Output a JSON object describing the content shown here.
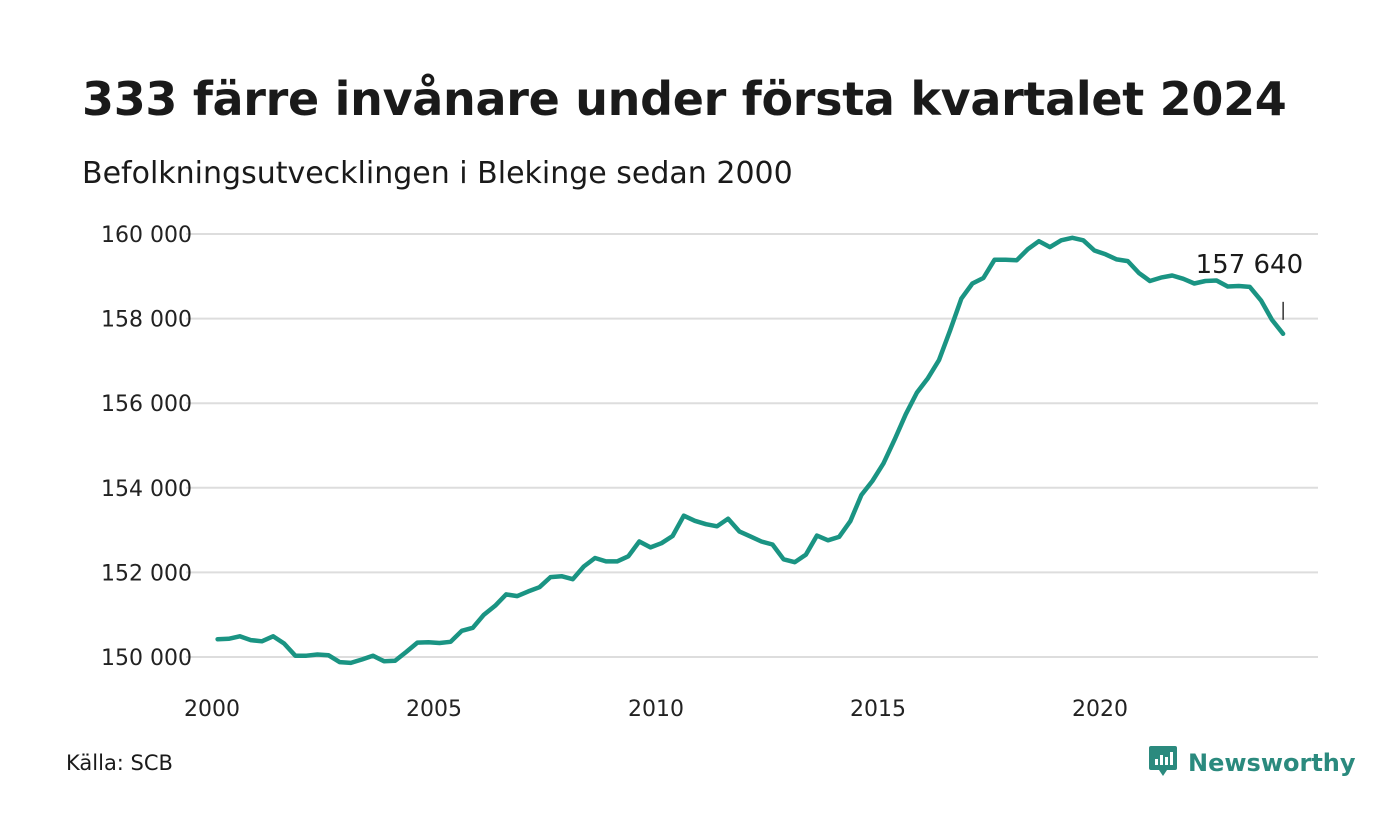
{
  "title": "333 färre invånare under första kvartalet 2024",
  "subtitle": "Befolkningsutvecklingen i Blekinge sedan 2000",
  "source": "Källa: SCB",
  "brand": {
    "name": "Newsworthy",
    "icon": "newsworthy-logo-icon",
    "color": "#2b8a7e"
  },
  "chart_data": {
    "type": "line",
    "line_color": "#1a9483",
    "grid": true,
    "ylim": [
      150000,
      160000
    ],
    "xlim": [
      2000,
      2025
    ],
    "y_ticks": [
      {
        "value": 150000,
        "label": "150 000"
      },
      {
        "value": 152000,
        "label": "152 000"
      },
      {
        "value": 154000,
        "label": "154 000"
      },
      {
        "value": 156000,
        "label": "156 000"
      },
      {
        "value": 158000,
        "label": "158 000"
      },
      {
        "value": 160000,
        "label": "160 000"
      }
    ],
    "x_ticks": [
      {
        "value": 2000,
        "label": "2000"
      },
      {
        "value": 2005,
        "label": "2005"
      },
      {
        "value": 2010,
        "label": "2010"
      },
      {
        "value": 2015,
        "label": "2015"
      },
      {
        "value": 2020,
        "label": "2020"
      }
    ],
    "end_label": "157 640",
    "series": [
      {
        "x": [
          "2000Q1",
          "2000Q2",
          "2000Q3",
          "2000Q4",
          "2001Q1",
          "2001Q2",
          "2001Q3",
          "2001Q4",
          "2002Q1",
          "2002Q2",
          "2002Q3",
          "2002Q4",
          "2003Q1",
          "2003Q2",
          "2003Q3",
          "2003Q4",
          "2004Q1",
          "2004Q2",
          "2004Q3",
          "2004Q4",
          "2005Q1",
          "2005Q2",
          "2005Q3",
          "2005Q4",
          "2006Q1",
          "2006Q2",
          "2006Q3",
          "2006Q4",
          "2007Q1",
          "2007Q2",
          "2007Q3",
          "2007Q4",
          "2008Q1",
          "2008Q2",
          "2008Q3",
          "2008Q4",
          "2009Q1",
          "2009Q2",
          "2009Q3",
          "2009Q4",
          "2010Q1",
          "2010Q2",
          "2010Q3",
          "2010Q4",
          "2011Q1",
          "2011Q2",
          "2011Q3",
          "2011Q4",
          "2012Q1",
          "2012Q2",
          "2012Q3",
          "2012Q4",
          "2013Q1",
          "2013Q2",
          "2013Q3",
          "2013Q4",
          "2014Q1",
          "2014Q2",
          "2014Q3",
          "2014Q4",
          "2015Q1",
          "2015Q2",
          "2015Q3",
          "2015Q4",
          "2016Q1",
          "2016Q2",
          "2016Q3",
          "2016Q4",
          "2017Q1",
          "2017Q2",
          "2017Q3",
          "2017Q4",
          "2018Q1",
          "2018Q2",
          "2018Q3",
          "2018Q4",
          "2019Q1",
          "2019Q2",
          "2019Q3",
          "2019Q4",
          "2020Q1",
          "2020Q2",
          "2020Q3",
          "2020Q4",
          "2021Q1",
          "2021Q2",
          "2021Q3",
          "2021Q4",
          "2022Q1",
          "2022Q2",
          "2022Q3",
          "2022Q4",
          "2023Q1",
          "2023Q2",
          "2023Q3",
          "2023Q4",
          "2024Q1"
        ],
        "values": [
          150420,
          150430,
          150490,
          150400,
          150370,
          150490,
          150320,
          150030,
          150030,
          150060,
          150040,
          149880,
          149860,
          149940,
          150030,
          149900,
          149910,
          150120,
          150340,
          150350,
          150330,
          150360,
          150620,
          150690,
          151000,
          151210,
          151480,
          151440,
          151550,
          151650,
          151890,
          151910,
          151840,
          152140,
          152340,
          152260,
          152260,
          152380,
          152730,
          152590,
          152690,
          152860,
          153340,
          153220,
          153140,
          153090,
          153270,
          152970,
          152850,
          152730,
          152660,
          152310,
          152240,
          152420,
          152870,
          152760,
          152840,
          153210,
          153830,
          154160,
          154580,
          155140,
          155740,
          156250,
          156590,
          157020,
          157720,
          158470,
          158830,
          158960,
          159390,
          159390,
          159380,
          159640,
          159830,
          159690,
          159850,
          159910,
          159850,
          159610,
          159520,
          159400,
          159360,
          159080,
          158890,
          158970,
          159020,
          158940,
          158830,
          158890,
          158900,
          158760,
          158770,
          158750,
          158430,
          157970,
          157640
        ]
      }
    ]
  }
}
